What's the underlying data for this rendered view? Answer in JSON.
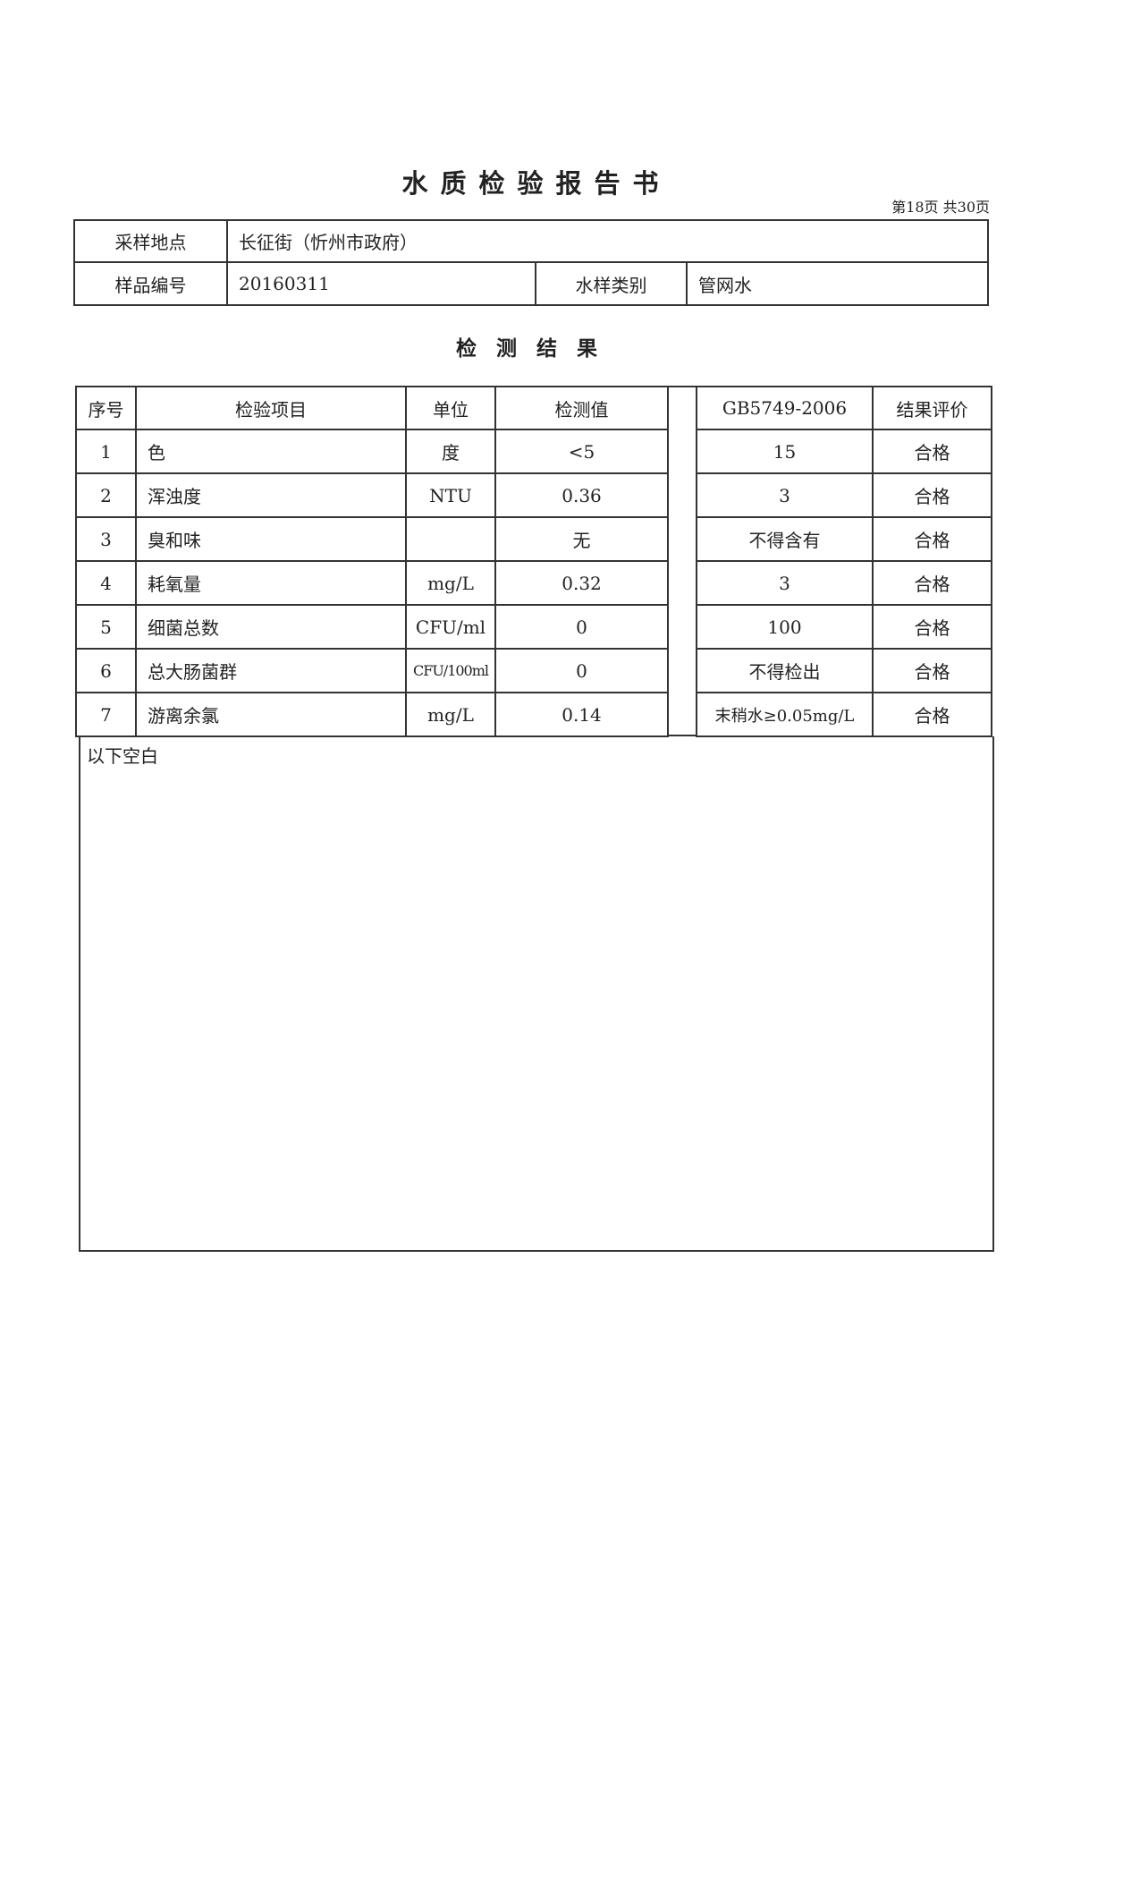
{
  "title": "水质检验报告书",
  "page_label": "第18页 共30页",
  "info": {
    "location_label": "采样地点",
    "location_value": "长征街（忻州市政府）",
    "sample_no_label": "样品编号",
    "sample_no_value": "20160311",
    "water_type_label": "水样类别",
    "water_type_value": "管网水"
  },
  "section_title": "检测结果",
  "results": {
    "headers": {
      "no": "序号",
      "item": "检验项目",
      "unit": "单位",
      "value": "检测值",
      "standard": "GB5749-2006",
      "evaluation": "结果评价"
    },
    "rows": [
      {
        "no": "1",
        "item": "色",
        "unit": "度",
        "value": "<5",
        "standard": "15",
        "evaluation": "合格"
      },
      {
        "no": "2",
        "item": "浑浊度",
        "unit": "NTU",
        "value": "0.36",
        "standard": "3",
        "evaluation": "合格"
      },
      {
        "no": "3",
        "item": "臭和味",
        "unit": "",
        "value": "无",
        "standard": "不得含有",
        "evaluation": "合格"
      },
      {
        "no": "4",
        "item": "耗氧量",
        "unit": "mg/L",
        "value": "0.32",
        "standard": "3",
        "evaluation": "合格"
      },
      {
        "no": "5",
        "item": "细菌总数",
        "unit": "CFU/ml",
        "value": "0",
        "standard": "100",
        "evaluation": "合格"
      },
      {
        "no": "6",
        "item": "总大肠菌群",
        "unit": "CFU/100ml",
        "value": "0",
        "standard": "不得检出",
        "evaluation": "合格"
      },
      {
        "no": "7",
        "item": "游离余氯",
        "unit": "mg/L",
        "value": "0.14",
        "standard": "末稍水≥0.05mg/L",
        "evaluation": "合格"
      }
    ],
    "footer_note": "以下空白"
  }
}
